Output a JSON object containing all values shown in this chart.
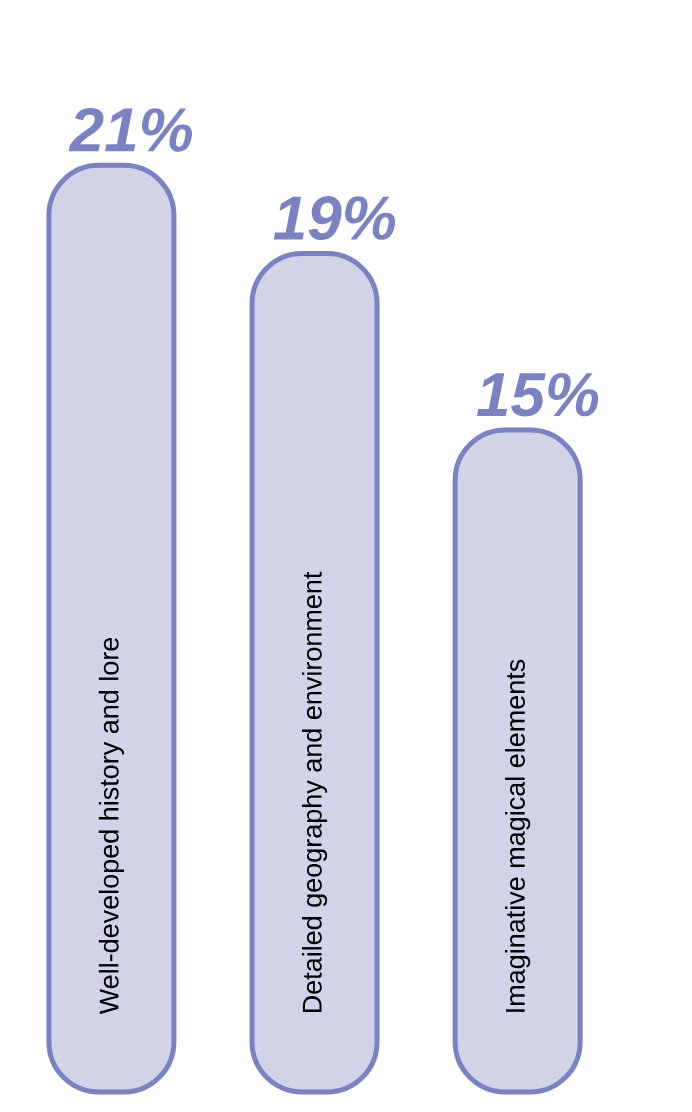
{
  "chart_data": {
    "type": "bar",
    "categories": [
      "Well-developed history and lore",
      "Detailed geography and environment",
      "Imaginative magical elements"
    ],
    "values": [
      21,
      19,
      15
    ],
    "color": "#7b82c0",
    "value_labels": [
      "21%",
      "19%",
      "15%"
    ]
  }
}
